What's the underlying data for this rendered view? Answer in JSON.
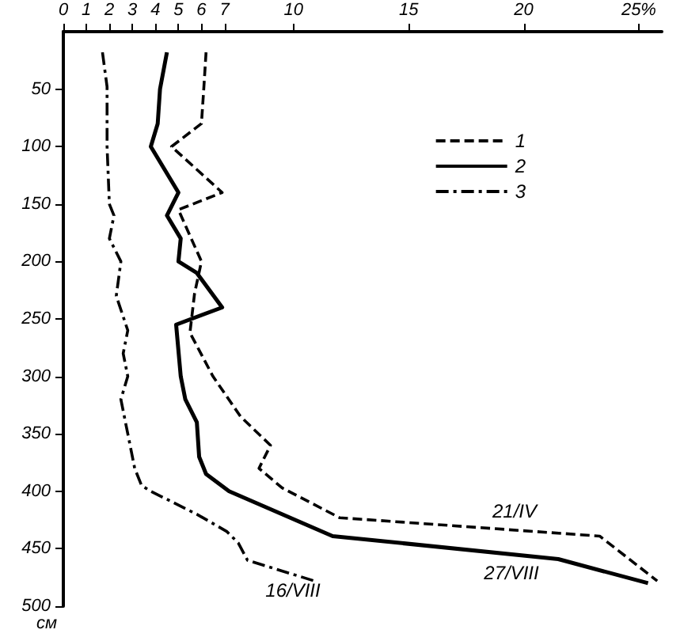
{
  "chart_data": {
    "type": "line",
    "ylabel": "см",
    "xlim": [
      0,
      26
    ],
    "xticks": [
      0,
      1,
      2,
      3,
      4,
      5,
      6,
      7,
      10,
      15,
      20,
      {
        "value": 25,
        "label": "25%"
      }
    ],
    "ylim": [
      500,
      0
    ],
    "yticks": [
      50,
      100,
      150,
      200,
      250,
      300,
      350,
      400,
      450,
      500
    ],
    "grid": false,
    "legend": "top right",
    "marker": "none",
    "series": [
      {
        "name": "1",
        "color": "#000000",
        "line_style": "dashed",
        "x": [
          6.2,
          6.1,
          6.0,
          4.7,
          6.9,
          5.0,
          6.0,
          5.7,
          5.5,
          6.5,
          7.7,
          9.0,
          8.5,
          9.5,
          12.0,
          23.3,
          25.8
        ],
        "values": [
          18,
          50,
          80,
          100,
          140,
          155,
          200,
          228,
          262,
          300,
          335,
          360,
          380,
          397,
          423,
          439,
          478
        ]
      },
      {
        "name": "2",
        "color": "#000000",
        "line_style": "solid",
        "x": [
          4.5,
          4.2,
          4.1,
          3.8,
          5.0,
          4.5,
          5.1,
          5.0,
          5.8,
          6.9,
          4.9,
          5.1,
          5.3,
          5.8,
          5.9,
          6.2,
          7.2,
          11.7,
          21.5,
          25.4
        ],
        "values": [
          18,
          50,
          80,
          100,
          140,
          160,
          180,
          200,
          210,
          240,
          255,
          300,
          320,
          340,
          370,
          385,
          400,
          439,
          459,
          480
        ]
      },
      {
        "name": "3",
        "color": "#000000",
        "line_style": "dashdot",
        "x": [
          1.7,
          1.9,
          1.9,
          2.0,
          2.2,
          2.0,
          2.5,
          2.3,
          2.8,
          2.6,
          2.8,
          2.5,
          2.8,
          3.1,
          3.4,
          3.8,
          5.8,
          7.1,
          7.6,
          8.0,
          10.9
        ],
        "values": [
          18,
          48,
          100,
          150,
          160,
          180,
          200,
          230,
          260,
          280,
          300,
          320,
          350,
          380,
          395,
          400,
          420,
          435,
          445,
          460,
          478
        ]
      }
    ],
    "annotations": [
      "21/IV",
      "27/VIII",
      "16/VIII"
    ]
  }
}
